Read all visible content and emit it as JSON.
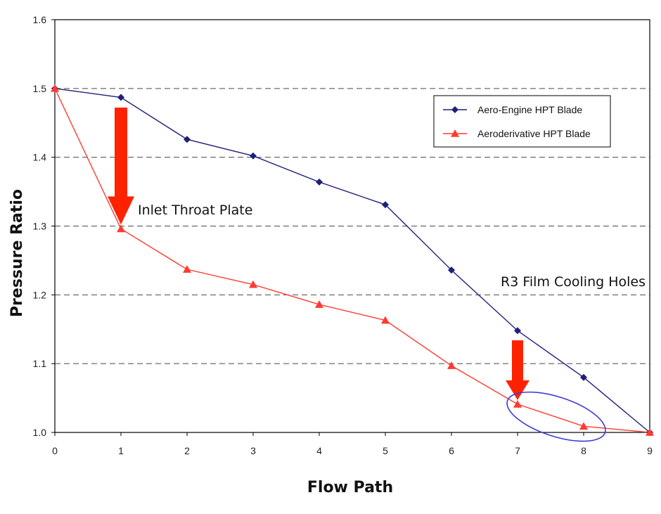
{
  "chart_data": {
    "type": "line",
    "xlabel": "Flow Path",
    "ylabel": "Pressure Ratio",
    "x": [
      0,
      1,
      2,
      3,
      4,
      5,
      6,
      7,
      8,
      9
    ],
    "xlim": [
      0,
      9
    ],
    "ylim": [
      1.0,
      1.6
    ],
    "x_ticks": [
      "0",
      "1",
      "2",
      "3",
      "4",
      "5",
      "6",
      "7",
      "8",
      "9"
    ],
    "y_ticks": [
      "1.0",
      "1.1",
      "1.2",
      "1.3",
      "1.4",
      "1.5",
      "1.6"
    ],
    "grid": "horizontal dashed",
    "legend_position": "top-right",
    "series": [
      {
        "name": "Aero-Engine HPT Blade",
        "marker": "diamond",
        "color": "#1f1f7a",
        "values": [
          1.5,
          1.487,
          1.426,
          1.402,
          1.364,
          1.331,
          1.236,
          1.148,
          1.08,
          1.0
        ]
      },
      {
        "name": "Aeroderivative HPT Blade",
        "marker": "triangle",
        "color": "#ff3b30",
        "values": [
          1.5,
          1.296,
          1.237,
          1.215,
          1.186,
          1.163,
          1.097,
          1.041,
          1.009,
          1.0
        ]
      }
    ],
    "annotations": [
      {
        "text": "Inlet Throat Plate",
        "x": 1,
        "y": 1.296,
        "arrow_color": "#ff2200"
      },
      {
        "text": "R3 Film Cooling Holes",
        "x": 7,
        "y": 1.041,
        "arrow_color": "#ff2200",
        "ellipse_color": "#3b3bd6"
      }
    ]
  }
}
